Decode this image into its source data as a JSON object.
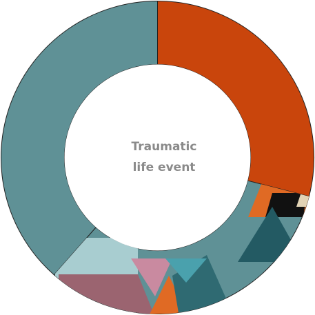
{
  "chart_data": {
    "type": "donut",
    "title": "Traumatic life event",
    "categories": [
      null,
      null,
      null
    ],
    "values": [
      29,
      32.5,
      38.5
    ],
    "colors": [
      "#c9450c",
      "#5f9196",
      "#5f9196"
    ]
  }
}
